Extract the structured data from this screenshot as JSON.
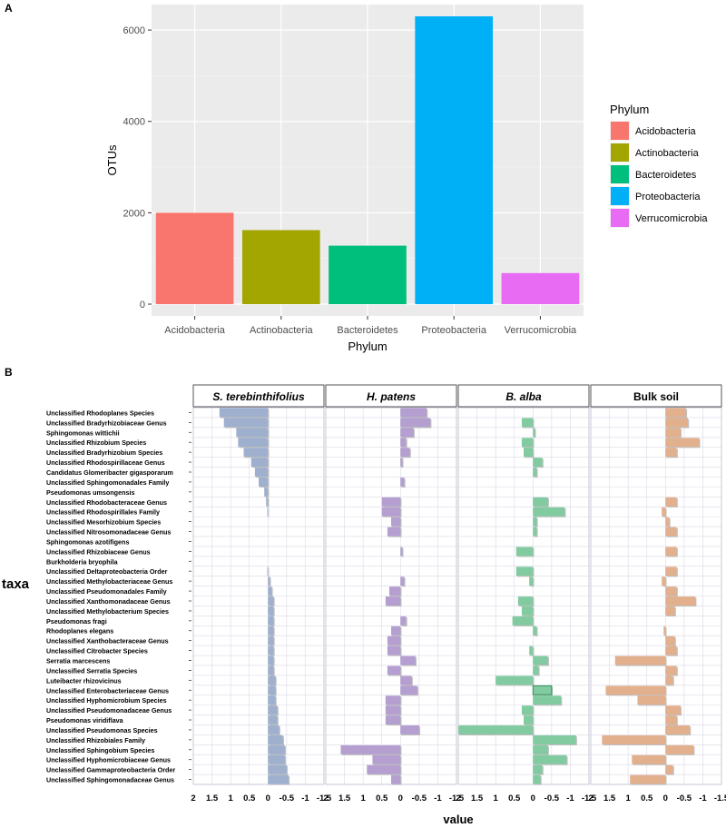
{
  "chart_data": [
    {
      "panel": "A",
      "type": "bar",
      "xlabel": "Phylum",
      "ylabel": "OTUs",
      "categories": [
        "Acidobacteria",
        "Actinobacteria",
        "Bacteroidetes",
        "Proteobacteria",
        "Verrucomicrobia"
      ],
      "values": [
        2000,
        1620,
        1280,
        6300,
        680
      ],
      "colors": [
        "#F8766D",
        "#A3A500",
        "#00BF7D",
        "#00B0F6",
        "#E76BF3"
      ],
      "ylim": [
        0,
        6300
      ],
      "yticks": [
        0,
        2000,
        4000,
        6000
      ],
      "grid": true,
      "legend": {
        "title": "Phylum",
        "position": "right",
        "entries": [
          "Acidobacteria",
          "Actinobacteria",
          "Bacteroidetes",
          "Proteobacteria",
          "Verrucomicrobia"
        ]
      }
    },
    {
      "panel": "B",
      "type": "bar",
      "orientation": "horizontal",
      "xlabel": "value",
      "ylabel": "taxa",
      "xlim": [
        2,
        -1.5
      ],
      "xticks": [
        2,
        1.5,
        1,
        0.5,
        0,
        -0.5,
        -1,
        -1.5
      ],
      "xtick_labels": [
        "2",
        "1.5",
        "1",
        "0.5",
        "0",
        "-0.5",
        "-1",
        "-1.5"
      ],
      "categories": [
        "Unclassified Rhodoplanes Species",
        "Unclassified Bradyrhizobiaceae Genus",
        "Sphingomonas wittichii",
        "Unclassified Rhizobium Species",
        "Unclassified Bradyrhizobium Species",
        "Unclassified Rhodospirillaceae Genus",
        "Candidatus Glomeribacter gigasporarum",
        "Unclassified Sphingomonadales Family",
        "Pseudomonas umsongensis",
        "Unclassified Rhodobacteraceae Genus",
        "Unclassified Rhodospirillales Family",
        "Unclassified Mesorhizobium Species",
        "Unclassified Nitrosomonadaceae Genus",
        "Sphingomonas azotifigens",
        "Unclassified Rhizobiaceae Genus",
        "Burkholderia bryophila",
        "Unclassified Deltaproteobacteria Order",
        "Unclassified Methylobacteriaceae Genus",
        "Unclassified Pseudomonadales Family",
        "Unclassified Xanthomonadaceae  Genus",
        "Unclassified Methylobacterium Species",
        "Pseudomonas fragi",
        "Rhodoplanes elegans",
        "Unclassified Xanthobacteraceae Genus",
        "Unclassified Citrobacter Species",
        "Serratia marcescens",
        "Unclassified Serratia Species",
        "Luteibacter rhizovicinus",
        "Unclassified Enterobacteriaceae Genus",
        "Unclassified Hyphomicrobium  Species",
        "Unclassified Pseudomonadaceae  Genus",
        "Pseudomonas viridiflava",
        "Unclassified Pseudomonas Species",
        "Unclassified Rhizobiales Family",
        "Unclassified Sphingobium Species",
        "Unclassified Hyphomicrobiaceae Genus",
        "Unclassified Gammaproteobacteria Order",
        "Unclassified Sphingomonadaceae  Genus"
      ],
      "colors": [
        "#9FB0CE",
        "#B49FD0",
        "#82CBA1",
        "#E3B08E"
      ],
      "series": [
        {
          "name": "S. terebinthifolius",
          "italic": true,
          "values": [
            1.3,
            1.18,
            0.85,
            0.8,
            0.65,
            0.45,
            0.35,
            0.25,
            0.1,
            0.05,
            0.02,
            0.0,
            0.0,
            0.0,
            0.0,
            0.0,
            0.02,
            -0.05,
            -0.1,
            -0.15,
            -0.15,
            -0.15,
            -0.15,
            -0.15,
            -0.15,
            -0.15,
            -0.15,
            -0.2,
            -0.2,
            -0.2,
            -0.25,
            -0.25,
            -0.3,
            -0.4,
            -0.45,
            -0.45,
            -0.5,
            -0.55
          ]
        },
        {
          "name": "H. patens",
          "italic": true,
          "values": [
            -0.7,
            -0.8,
            -0.35,
            -0.15,
            -0.25,
            -0.05,
            0.0,
            -0.1,
            0.0,
            0.5,
            0.5,
            0.25,
            0.35,
            0.0,
            -0.05,
            0.0,
            0.0,
            -0.1,
            0.3,
            0.4,
            0.0,
            -0.15,
            0.25,
            0.35,
            0.35,
            -0.4,
            0.35,
            -0.3,
            -0.45,
            0.4,
            0.4,
            0.4,
            -0.5,
            0.0,
            1.6,
            0.75,
            0.9,
            0.25
          ]
        },
        {
          "name": "B. alba",
          "italic": true,
          "values": [
            0.0,
            0.3,
            -0.05,
            0.3,
            0.25,
            -0.25,
            -0.1,
            0.0,
            0.0,
            -0.4,
            -0.85,
            -0.1,
            -0.1,
            0.0,
            0.45,
            0.0,
            0.45,
            0.1,
            0.0,
            0.4,
            0.3,
            0.55,
            -0.1,
            0.0,
            0.1,
            -0.4,
            -0.15,
            1.0,
            -0.5,
            -0.75,
            0.3,
            0.25,
            2.0,
            -1.15,
            -0.4,
            -0.9,
            -0.25,
            -0.2
          ],
          "highlight_index": 28,
          "highlight_value": -0.5
        },
        {
          "name": "Bulk soil",
          "italic": false,
          "values": [
            -0.55,
            -0.6,
            -0.4,
            -0.9,
            -0.3,
            0.0,
            0.0,
            0.0,
            0.0,
            -0.3,
            0.1,
            -0.1,
            -0.3,
            0.0,
            -0.3,
            0.0,
            -0.3,
            0.1,
            -0.3,
            -0.8,
            -0.25,
            0.0,
            0.05,
            -0.25,
            -0.3,
            1.35,
            -0.3,
            -0.2,
            1.6,
            0.75,
            -0.4,
            -0.3,
            -0.65,
            1.7,
            -0.75,
            0.9,
            -0.2,
            0.95
          ]
        }
      ],
      "grid": true
    }
  ]
}
